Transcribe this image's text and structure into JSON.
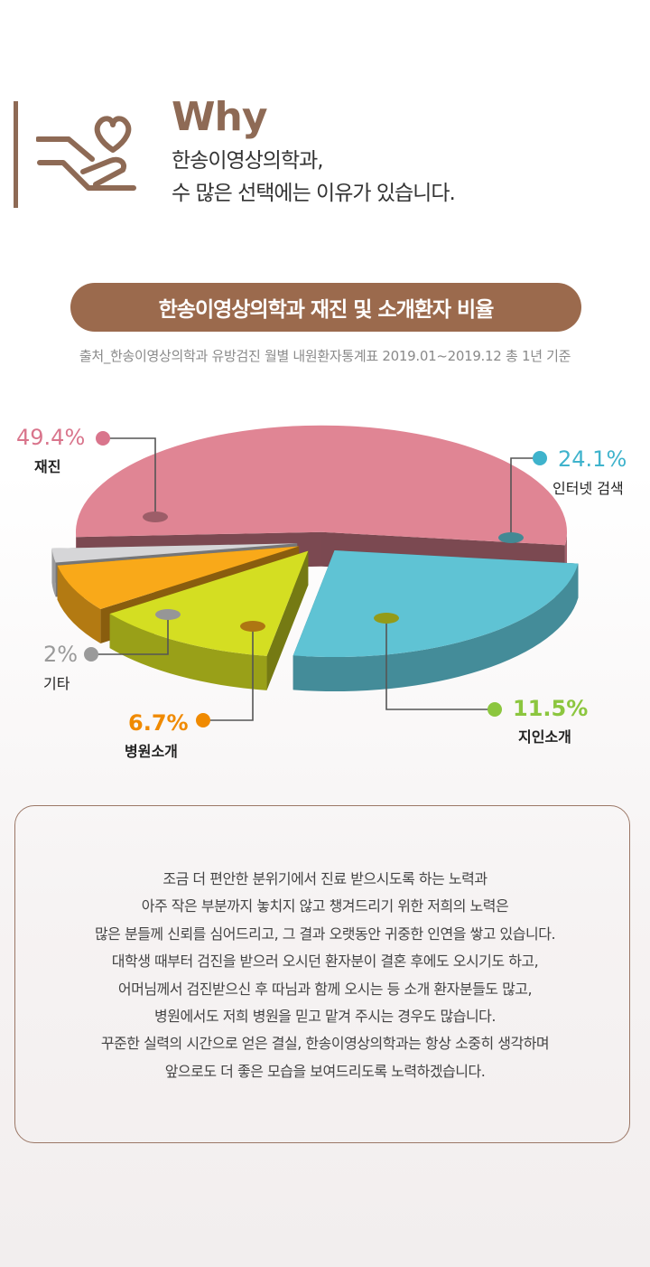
{
  "header": {
    "title": "Why",
    "line1": "한송이영상의학과,",
    "line2": "수 많은 선택에는 이유가 있습니다."
  },
  "banner": {
    "text": "한송이영상의학과 재진 및 소개환자 비율"
  },
  "source": "출처_한송이영상의학과 유방검진 월별 내원환자통계표 2019.01~2019.12 총 1년 기준",
  "chart_data": {
    "type": "pie",
    "style": "3d-exploded",
    "slices": [
      {
        "label": "재진",
        "value": 49.4,
        "display": "49.4%",
        "color": "#e08594",
        "label_color": "#d9758c"
      },
      {
        "label": "인터넷 검색",
        "value": 24.1,
        "display": "24.1%",
        "color": "#5fc3d4",
        "label_color": "#3fb3cc"
      },
      {
        "label": "지인소개",
        "value": 11.5,
        "display": "11.5%",
        "color": "#d4de22",
        "label_color": "#8cc63f"
      },
      {
        "label": "병원소개",
        "value": 6.7,
        "display": "6.7%",
        "color": "#f9a919",
        "label_color": "#f08a00"
      },
      {
        "label": "기타",
        "value": 2,
        "display": "2%",
        "color": "#d6d6d8",
        "label_color": "#9a9a9a"
      }
    ]
  },
  "description": [
    "조금 더 편안한 분위기에서 진료 받으시도록 하는 노력과",
    "아주 작은 부분까지 놓치지 않고 챙겨드리기 위한 저희의 노력은",
    "많은 분들께 신뢰를 심어드리고, 그 결과 오랫동안 귀중한 인연을 쌓고 있습니다.",
    "대학생 때부터 검진을 받으러 오시던 환자분이 결혼 후에도 오시기도 하고,",
    "어머님께서 검진받으신 후 따님과 함께 오시는 등 소개 환자분들도 많고,",
    "병원에서도 저희 병원을 믿고 맡겨 주시는 경우도 많습니다.",
    "꾸준한 실력의 시간으로 얻은 결실, 한송이영상의학과는 항상 소중히 생각하며",
    "앞으로도 더 좋은 모습을 보여드리도록 노력하겠습니다."
  ]
}
